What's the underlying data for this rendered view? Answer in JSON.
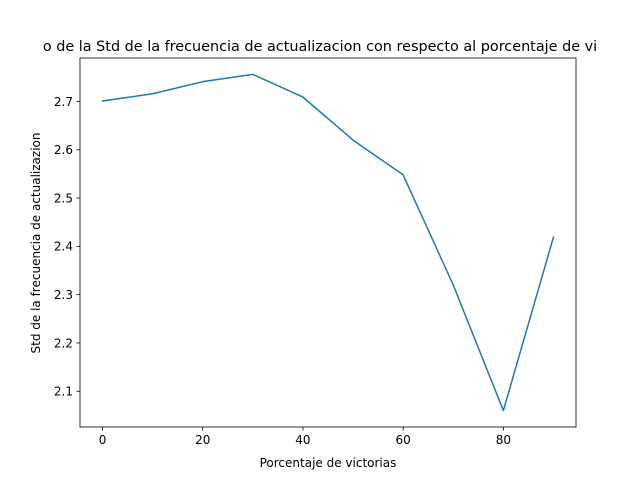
{
  "chart_data": {
    "type": "line",
    "title": "Evolucion de la media de la Std de la frecuencia de actualizacion con respecto al porcentaje de victorias",
    "title_visible": "o de la Std de la frecuencia de actualizacion con respecto al porcentaje de vi",
    "xlabel": "Porcentaje de victorias",
    "ylabel": "Std de la frecuencia de actualizazion",
    "xlim": [
      -4.5,
      94.5
    ],
    "ylim": [
      2.026,
      2.79
    ],
    "xticks": [
      0,
      20,
      40,
      60,
      80
    ],
    "yticks": [
      2.1,
      2.2,
      2.3,
      2.4,
      2.5,
      2.6,
      2.7
    ],
    "grid": false,
    "color": "#1f77b4",
    "series": [
      {
        "x": [
          0,
          10,
          20,
          30,
          40,
          50,
          60,
          70,
          80,
          90
        ],
        "values": [
          2.701,
          2.716,
          2.741,
          2.756,
          2.709,
          2.62,
          2.548,
          2.32,
          2.06,
          2.419
        ]
      }
    ]
  }
}
